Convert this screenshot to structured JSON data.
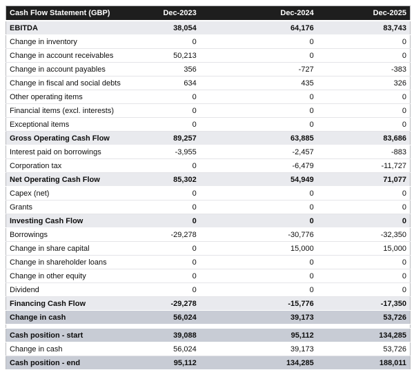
{
  "table": {
    "title": "Cash Flow Statement (GBP)",
    "columns": [
      "Dec-2023",
      "Dec-2024",
      "Dec-2025"
    ],
    "rows": [
      {
        "label": "EBITDA",
        "values": [
          "38,054",
          "64,176",
          "83,743"
        ],
        "style": "subtotal"
      },
      {
        "label": "Change in inventory",
        "values": [
          "0",
          "0",
          "0"
        ],
        "style": "normal"
      },
      {
        "label": "Change in account receivables",
        "values": [
          "50,213",
          "0",
          "0"
        ],
        "style": "normal"
      },
      {
        "label": "Change in account payables",
        "values": [
          "356",
          "-727",
          "-383"
        ],
        "style": "normal"
      },
      {
        "label": "Change in fiscal and social debts",
        "values": [
          "634",
          "435",
          "326"
        ],
        "style": "normal"
      },
      {
        "label": "Other operating items",
        "values": [
          "0",
          "0",
          "0"
        ],
        "style": "normal"
      },
      {
        "label": "Financial items (excl. interests)",
        "values": [
          "0",
          "0",
          "0"
        ],
        "style": "normal"
      },
      {
        "label": "Exceptional items",
        "values": [
          "0",
          "0",
          "0"
        ],
        "style": "normal"
      },
      {
        "label": "Gross Operating Cash Flow",
        "values": [
          "89,257",
          "63,885",
          "83,686"
        ],
        "style": "subtotal"
      },
      {
        "label": "Interest paid on borrowings",
        "values": [
          "-3,955",
          "-2,457",
          "-883"
        ],
        "style": "normal"
      },
      {
        "label": "Corporation tax",
        "values": [
          "0",
          "-6,479",
          "-11,727"
        ],
        "style": "normal"
      },
      {
        "label": "Net Operating Cash Flow",
        "values": [
          "85,302",
          "54,949",
          "71,077"
        ],
        "style": "subtotal"
      },
      {
        "label": "Capex (net)",
        "values": [
          "0",
          "0",
          "0"
        ],
        "style": "normal"
      },
      {
        "label": "Grants",
        "values": [
          "0",
          "0",
          "0"
        ],
        "style": "normal"
      },
      {
        "label": "Investing Cash Flow",
        "values": [
          "0",
          "0",
          "0"
        ],
        "style": "subtotal"
      },
      {
        "label": "Borrowings",
        "values": [
          "-29,278",
          "-30,776",
          "-32,350"
        ],
        "style": "normal"
      },
      {
        "label": "Change in share capital",
        "values": [
          "0",
          "15,000",
          "15,000"
        ],
        "style": "normal"
      },
      {
        "label": "Change in shareholder loans",
        "values": [
          "0",
          "0",
          "0"
        ],
        "style": "normal"
      },
      {
        "label": "Change in other equity",
        "values": [
          "0",
          "0",
          "0"
        ],
        "style": "normal"
      },
      {
        "label": "Dividend",
        "values": [
          "0",
          "0",
          "0"
        ],
        "style": "normal"
      },
      {
        "label": "Financing Cash Flow",
        "values": [
          "-29,278",
          "-15,776",
          "-17,350"
        ],
        "style": "subtotal"
      },
      {
        "label": "Change in cash",
        "values": [
          "56,024",
          "39,173",
          "53,726"
        ],
        "style": "strong"
      },
      {
        "style": "spacer"
      },
      {
        "label": "Cash position - start",
        "values": [
          "39,088",
          "95,112",
          "134,285"
        ],
        "style": "strong"
      },
      {
        "label": "Change in cash",
        "values": [
          "56,024",
          "39,173",
          "53,726"
        ],
        "style": "normal"
      },
      {
        "label": "Cash position - end",
        "values": [
          "95,112",
          "134,285",
          "188,011"
        ],
        "style": "strong"
      }
    ]
  },
  "colors": {
    "header_bg": "#1e1e1e",
    "header_text": "#ffffff",
    "subtotal_row_bg": "#e9eaee",
    "summary_row_bg": "#c8ccd5",
    "body_text": "#0d0d0d"
  }
}
